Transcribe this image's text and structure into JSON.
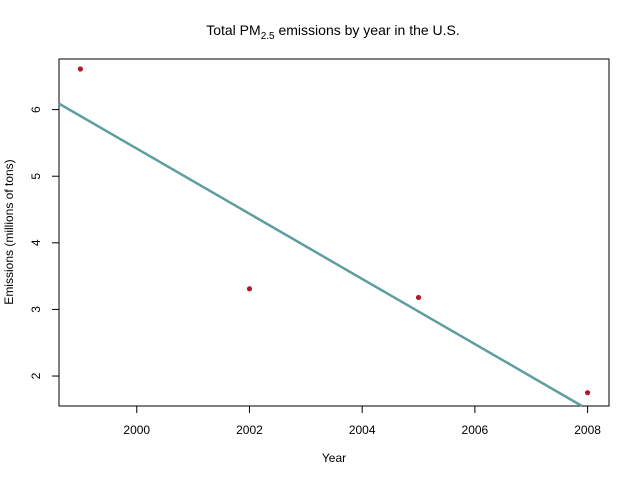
{
  "chart_data": {
    "type": "scatter",
    "title": {
      "main": "Total PM",
      "subscript": "2.5",
      "rest": " emissions by year in the U.S."
    },
    "xlabel": "Year",
    "ylabel": "Emissions (millions of tons)",
    "xlim": [
      1998.62,
      2008.38
    ],
    "ylim": [
      1.55,
      6.76
    ],
    "x_ticks": [
      2000,
      2002,
      2004,
      2006,
      2008
    ],
    "y_ticks": [
      2,
      3,
      4,
      5,
      6
    ],
    "grid": false,
    "legend": "none",
    "series": [
      {
        "points": [
          {
            "x": 1999,
            "y": 6.61
          },
          {
            "x": 2002,
            "y": 3.31
          },
          {
            "x": 2005,
            "y": 3.18
          },
          {
            "x": 2008,
            "y": 1.75
          }
        ]
      }
    ],
    "trend_line": {
      "type": "linear",
      "start": {
        "x": 1998.62,
        "y": 6.09
      },
      "end": {
        "x": 2007.9,
        "y": 1.55
      }
    },
    "colors": {
      "points": "#b2182b",
      "trend_line": "#5f9ea0",
      "axes": "#000000"
    }
  }
}
